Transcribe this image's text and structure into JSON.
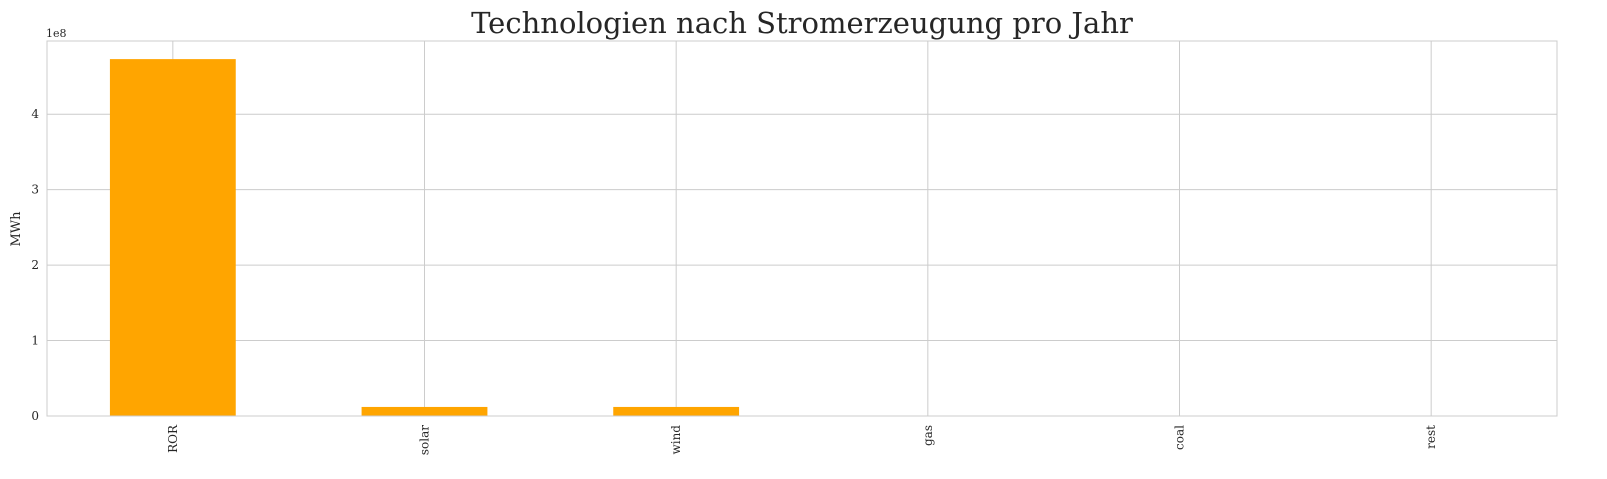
{
  "chart_data": {
    "type": "bar",
    "title": "Technologien nach Stromerzeugung pro Jahr",
    "xlabel": "",
    "ylabel": "MWh",
    "y_offset_label": "1e8",
    "categories": [
      "ROR",
      "solar",
      "wind",
      "gas",
      "coal",
      "rest"
    ],
    "values": [
      473000000,
      12000000,
      12000000,
      0,
      0,
      0
    ],
    "ylim": [
      0,
      497000000
    ],
    "yticks": [
      0,
      100000000,
      200000000,
      300000000,
      400000000
    ],
    "ytick_labels": [
      "0",
      "1",
      "2",
      "3",
      "4"
    ],
    "bar_color": "#ffa500",
    "grid": true,
    "grid_color": "#cccccc",
    "axes_edge_color": "#cccccc"
  }
}
